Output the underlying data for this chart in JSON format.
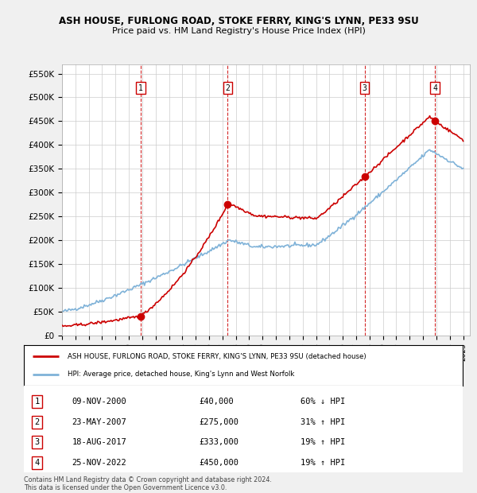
{
  "title1": "ASH HOUSE, FURLONG ROAD, STOKE FERRY, KING'S LYNN, PE33 9SU",
  "title2": "Price paid vs. HM Land Registry's House Price Index (HPI)",
  "sales": [
    {
      "label": "1",
      "date_str": "09-NOV-2000",
      "x": 2000.87,
      "price": 40000
    },
    {
      "label": "2",
      "date_str": "23-MAY-2007",
      "x": 2007.39,
      "price": 275000
    },
    {
      "label": "3",
      "date_str": "18-AUG-2017",
      "x": 2017.63,
      "price": 333000
    },
    {
      "label": "4",
      "date_str": "25-NOV-2022",
      "x": 2022.9,
      "price": 450000
    }
  ],
  "legend_line1": "ASH HOUSE, FURLONG ROAD, STOKE FERRY, KING'S LYNN, PE33 9SU (detached house)",
  "legend_line2": "HPI: Average price, detached house, King's Lynn and West Norfolk",
  "footer1": "Contains HM Land Registry data © Crown copyright and database right 2024.",
  "footer2": "This data is licensed under the Open Government Licence v3.0.",
  "xmin": 1995,
  "xmax": 2025.5,
  "ymin": 0,
  "ymax": 570000,
  "yticks": [
    0,
    50000,
    100000,
    150000,
    200000,
    250000,
    300000,
    350000,
    400000,
    450000,
    500000,
    550000
  ],
  "ytick_labels": [
    "£0",
    "£50K",
    "£100K",
    "£150K",
    "£200K",
    "£250K",
    "£300K",
    "£350K",
    "£400K",
    "£450K",
    "£500K",
    "£550K"
  ],
  "sale_dates": [
    "09-NOV-2000",
    "23-MAY-2007",
    "18-AUG-2017",
    "25-NOV-2022"
  ],
  "sale_prices_str": [
    "£40,000",
    "£275,000",
    "£333,000",
    "£450,000"
  ],
  "sale_hpi": [
    "60% ↓ HPI",
    "31% ↑ HPI",
    "19% ↑ HPI",
    "19% ↑ HPI"
  ],
  "bg_color": "#f0f0f0",
  "plot_bg": "#ffffff",
  "red_color": "#cc0000",
  "blue_color": "#7fb2d8"
}
